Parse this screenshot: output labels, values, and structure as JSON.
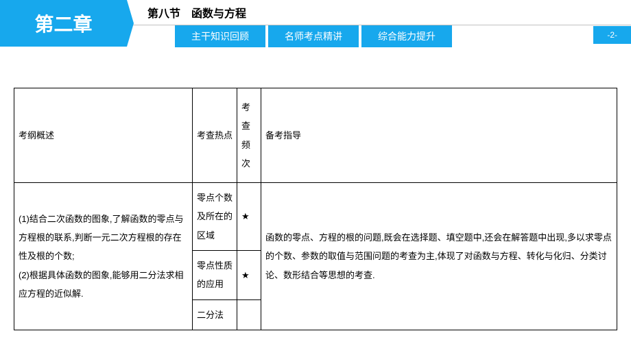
{
  "header": {
    "chapter": "第二章",
    "section": "第八节　函数与方程",
    "tabs": [
      "主干知识回顾",
      "名师考点精讲",
      "综合能力提升"
    ],
    "page": "-2-"
  },
  "table": {
    "headers": {
      "outline": "考纲概述",
      "hotspot": "考查热点",
      "freq": "考查频次",
      "guide": "备考指导"
    },
    "outline": "(1)结合二次函数的图象,了解函数的零点与方程根的联系,判断一元二次方程根的存在性及根的个数;\n(2)根据具体函数的图象,能够用二分法求相应方程的近似解.",
    "hotspots": [
      {
        "name": "零点个数及所在的区域",
        "freq": "★"
      },
      {
        "name": "零点性质的应用",
        "freq": "★"
      },
      {
        "name": "二分法",
        "freq": ""
      }
    ],
    "guide": "函数的零点、方程的根的问题,既会在选择题、填空题中,还会在解答题中出现,多以求零点的个数、参数的取值与范围问题的考查为主,体现了对函数与方程、转化与化归、分类讨论、数形结合等思想的考查."
  },
  "colors": {
    "primary": "#17a8ed",
    "text": "#000000",
    "border": "#000000",
    "divider": "#c0c0c0"
  }
}
